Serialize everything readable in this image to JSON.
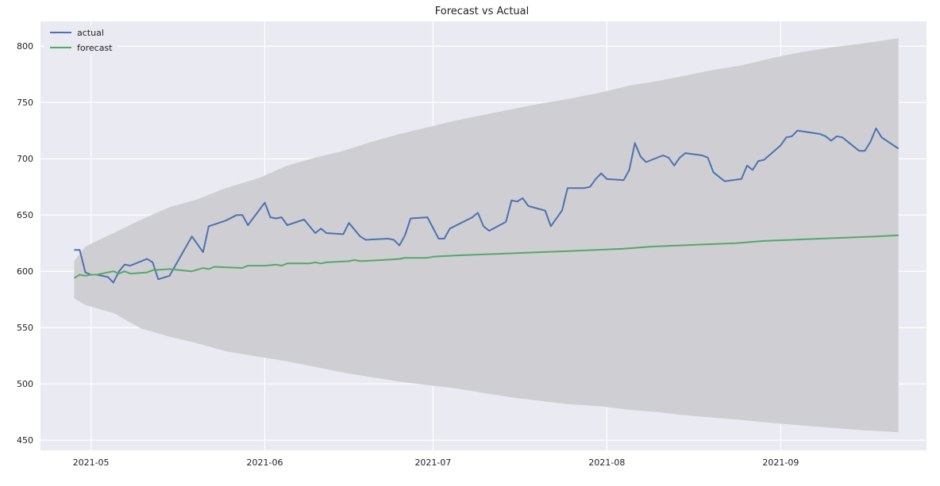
{
  "chart_data": {
    "type": "line",
    "title": "Forecast vs Actual",
    "xlabel": "",
    "ylabel": "",
    "x_ticks": [
      "2021-05",
      "2021-06",
      "2021-07",
      "2021-08",
      "2021-09"
    ],
    "y_ticks": [
      450,
      500,
      550,
      600,
      650,
      700,
      750,
      800
    ],
    "xlim": [
      "2021-04-22",
      "2021-09-27"
    ],
    "ylim": [
      441,
      822
    ],
    "grid": true,
    "legend_position": "top-left",
    "background_color": "#eaeaf2",
    "grid_color": "#ffffff",
    "band_color": "#cfcfd3",
    "series": [
      {
        "name": "actual",
        "color": "#4c72b0",
        "points": [
          [
            "2021-04-28",
            619
          ],
          [
            "2021-04-29",
            619
          ],
          [
            "2021-04-30",
            599
          ],
          [
            "2021-05-01",
            597
          ],
          [
            "2021-05-02",
            597
          ],
          [
            "2021-05-04",
            595
          ],
          [
            "2021-05-05",
            590
          ],
          [
            "2021-05-06",
            600
          ],
          [
            "2021-05-07",
            606
          ],
          [
            "2021-05-08",
            605
          ],
          [
            "2021-05-11",
            611
          ],
          [
            "2021-05-12",
            608
          ],
          [
            "2021-05-13",
            593
          ],
          [
            "2021-05-15",
            596
          ],
          [
            "2021-05-19",
            631
          ],
          [
            "2021-05-21",
            617
          ],
          [
            "2021-05-22",
            640
          ],
          [
            "2021-05-25",
            645
          ],
          [
            "2021-05-27",
            650
          ],
          [
            "2021-05-28",
            650
          ],
          [
            "2021-05-29",
            641
          ],
          [
            "2021-06-01",
            661
          ],
          [
            "2021-06-02",
            648
          ],
          [
            "2021-06-03",
            647
          ],
          [
            "2021-06-04",
            648
          ],
          [
            "2021-06-05",
            641
          ],
          [
            "2021-06-08",
            646
          ],
          [
            "2021-06-10",
            634
          ],
          [
            "2021-06-11",
            638
          ],
          [
            "2021-06-12",
            634
          ],
          [
            "2021-06-15",
            633
          ],
          [
            "2021-06-16",
            643
          ],
          [
            "2021-06-18",
            631
          ],
          [
            "2021-06-19",
            628
          ],
          [
            "2021-06-23",
            629
          ],
          [
            "2021-06-24",
            628
          ],
          [
            "2021-06-25",
            623
          ],
          [
            "2021-06-26",
            632
          ],
          [
            "2021-06-27",
            647
          ],
          [
            "2021-06-30",
            648
          ],
          [
            "2021-07-02",
            629
          ],
          [
            "2021-07-03",
            629
          ],
          [
            "2021-07-04",
            638
          ],
          [
            "2021-07-08",
            648
          ],
          [
            "2021-07-09",
            652
          ],
          [
            "2021-07-10",
            640
          ],
          [
            "2021-07-11",
            636
          ],
          [
            "2021-07-14",
            644
          ],
          [
            "2021-07-15",
            663
          ],
          [
            "2021-07-16",
            662
          ],
          [
            "2021-07-17",
            665
          ],
          [
            "2021-07-18",
            658
          ],
          [
            "2021-07-21",
            654
          ],
          [
            "2021-07-22",
            640
          ],
          [
            "2021-07-24",
            654
          ],
          [
            "2021-07-25",
            674
          ],
          [
            "2021-07-28",
            674
          ],
          [
            "2021-07-29",
            675
          ],
          [
            "2021-07-30",
            682
          ],
          [
            "2021-07-31",
            687
          ],
          [
            "2021-08-01",
            682
          ],
          [
            "2021-08-04",
            681
          ],
          [
            "2021-08-05",
            690
          ],
          [
            "2021-08-06",
            714
          ],
          [
            "2021-08-07",
            702
          ],
          [
            "2021-08-08",
            697
          ],
          [
            "2021-08-11",
            703
          ],
          [
            "2021-08-12",
            701
          ],
          [
            "2021-08-13",
            694
          ],
          [
            "2021-08-14",
            701
          ],
          [
            "2021-08-15",
            705
          ],
          [
            "2021-08-18",
            703
          ],
          [
            "2021-08-19",
            701
          ],
          [
            "2021-08-20",
            688
          ],
          [
            "2021-08-22",
            680
          ],
          [
            "2021-08-25",
            682
          ],
          [
            "2021-08-26",
            694
          ],
          [
            "2021-08-27",
            690
          ],
          [
            "2021-08-28",
            698
          ],
          [
            "2021-08-29",
            699
          ],
          [
            "2021-09-01",
            712
          ],
          [
            "2021-09-02",
            719
          ],
          [
            "2021-09-03",
            720
          ],
          [
            "2021-09-04",
            725
          ],
          [
            "2021-09-08",
            722
          ],
          [
            "2021-09-09",
            720
          ],
          [
            "2021-09-10",
            716
          ],
          [
            "2021-09-11",
            720
          ],
          [
            "2021-09-12",
            719
          ],
          [
            "2021-09-15",
            707
          ],
          [
            "2021-09-16",
            707
          ],
          [
            "2021-09-17",
            715
          ],
          [
            "2021-09-18",
            727
          ],
          [
            "2021-09-19",
            719
          ],
          [
            "2021-09-22",
            709
          ]
        ]
      },
      {
        "name": "forecast",
        "color": "#55a868",
        "points": [
          [
            "2021-04-28",
            594
          ],
          [
            "2021-04-29",
            597
          ],
          [
            "2021-04-30",
            596
          ],
          [
            "2021-05-01",
            597
          ],
          [
            "2021-05-02",
            597
          ],
          [
            "2021-05-04",
            599
          ],
          [
            "2021-05-05",
            600
          ],
          [
            "2021-05-06",
            598
          ],
          [
            "2021-05-07",
            600
          ],
          [
            "2021-05-08",
            598
          ],
          [
            "2021-05-11",
            599
          ],
          [
            "2021-05-12",
            601
          ],
          [
            "2021-05-15",
            602
          ],
          [
            "2021-05-19",
            600
          ],
          [
            "2021-05-21",
            603
          ],
          [
            "2021-05-22",
            602
          ],
          [
            "2021-05-23",
            604
          ],
          [
            "2021-05-28",
            603
          ],
          [
            "2021-05-29",
            605
          ],
          [
            "2021-06-01",
            605
          ],
          [
            "2021-06-03",
            606
          ],
          [
            "2021-06-04",
            605
          ],
          [
            "2021-06-05",
            607
          ],
          [
            "2021-06-08",
            607
          ],
          [
            "2021-06-09",
            607
          ],
          [
            "2021-06-10",
            608
          ],
          [
            "2021-06-11",
            607
          ],
          [
            "2021-06-12",
            608
          ],
          [
            "2021-06-16",
            609
          ],
          [
            "2021-06-17",
            610
          ],
          [
            "2021-06-18",
            609
          ],
          [
            "2021-06-22",
            610
          ],
          [
            "2021-06-25",
            611
          ],
          [
            "2021-06-26",
            612
          ],
          [
            "2021-06-30",
            612
          ],
          [
            "2021-07-01",
            613
          ],
          [
            "2021-07-05",
            614
          ],
          [
            "2021-07-10",
            615
          ],
          [
            "2021-07-15",
            616
          ],
          [
            "2021-07-20",
            617
          ],
          [
            "2021-07-25",
            618
          ],
          [
            "2021-07-30",
            619
          ],
          [
            "2021-08-04",
            620
          ],
          [
            "2021-08-09",
            622
          ],
          [
            "2021-08-14",
            623
          ],
          [
            "2021-08-19",
            624
          ],
          [
            "2021-08-24",
            625
          ],
          [
            "2021-08-29",
            627
          ],
          [
            "2021-09-03",
            628
          ],
          [
            "2021-09-08",
            629
          ],
          [
            "2021-09-13",
            630
          ],
          [
            "2021-09-18",
            631
          ],
          [
            "2021-09-22",
            632
          ]
        ]
      }
    ],
    "interval": {
      "x": [
        "2021-04-28",
        "2021-04-30",
        "2021-05-05",
        "2021-05-10",
        "2021-05-15",
        "2021-05-20",
        "2021-05-25",
        "2021-05-31",
        "2021-06-05",
        "2021-06-10",
        "2021-06-15",
        "2021-06-20",
        "2021-06-25",
        "2021-06-30",
        "2021-07-05",
        "2021-07-10",
        "2021-07-15",
        "2021-07-20",
        "2021-07-25",
        "2021-07-31",
        "2021-08-05",
        "2021-08-10",
        "2021-08-15",
        "2021-08-20",
        "2021-08-25",
        "2021-08-31",
        "2021-09-05",
        "2021-09-10",
        "2021-09-15",
        "2021-09-22"
      ],
      "upper": [
        609,
        622,
        634,
        646,
        657,
        664,
        674,
        683,
        694,
        701,
        707,
        715,
        722,
        728,
        734,
        739,
        744,
        749,
        753,
        759,
        765,
        769,
        774,
        779,
        783,
        790,
        795,
        799,
        802,
        807
      ],
      "lower": [
        576,
        570,
        563,
        549,
        542,
        536,
        529,
        524,
        520,
        515,
        510,
        506,
        502,
        499,
        496,
        492,
        488,
        485,
        482,
        480,
        477,
        475,
        472,
        470,
        468,
        465,
        463,
        461,
        459,
        457
      ]
    }
  }
}
